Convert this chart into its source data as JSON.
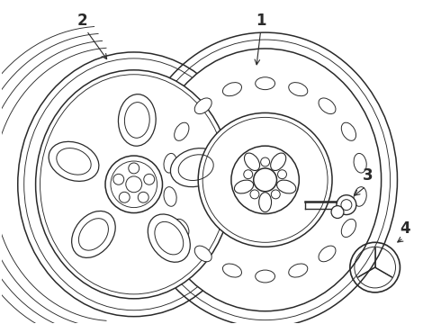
{
  "bg_color": "#ffffff",
  "lc": "#2a2a2a",
  "lw_main": 1.1,
  "lw_thin": 0.65,
  "lw_med": 0.85,
  "figsize": [
    4.9,
    3.6
  ],
  "dpi": 100,
  "label_fontsize": 12,
  "label_fontweight": "bold"
}
